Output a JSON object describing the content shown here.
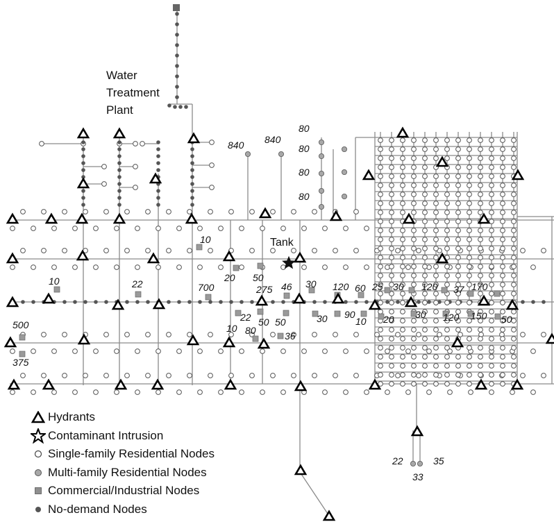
{
  "labels": {
    "plant_line1": "Water",
    "plant_line2": "Treatment",
    "plant_line3": "Plant",
    "tank": "Tank"
  },
  "legend": [
    {
      "symbol": "hydrant",
      "label": "Hydrants"
    },
    {
      "symbol": "star",
      "label": "Contaminant Intrusion"
    },
    {
      "symbol": "single-family",
      "label": "Single-family Residential Nodes"
    },
    {
      "symbol": "multi-family",
      "label": "Multi-family Residential Nodes"
    },
    {
      "symbol": "commercial",
      "label": "Commercial/Industrial Nodes"
    },
    {
      "symbol": "no-demand",
      "label": "No-demand Nodes"
    }
  ],
  "demand_labels": [
    "840",
    "840",
    "80",
    "80",
    "80",
    "80",
    "10",
    "20",
    "50",
    "46",
    "275",
    "700",
    "22",
    "10",
    "500",
    "375",
    "22",
    "80",
    "10",
    "50",
    "50",
    "36",
    "30",
    "120",
    "60",
    "25",
    "30",
    "120",
    "37",
    "170",
    "30",
    "90",
    "10",
    "20",
    "30",
    "120",
    "150",
    "50",
    "22",
    "35",
    "33"
  ],
  "colors": {
    "pipe": "#8a8a8a",
    "node_dark": "#555555",
    "commercial": "#9a9a9a",
    "multi_family": "#a8a8a8",
    "hydrant_stroke": "#000000"
  }
}
